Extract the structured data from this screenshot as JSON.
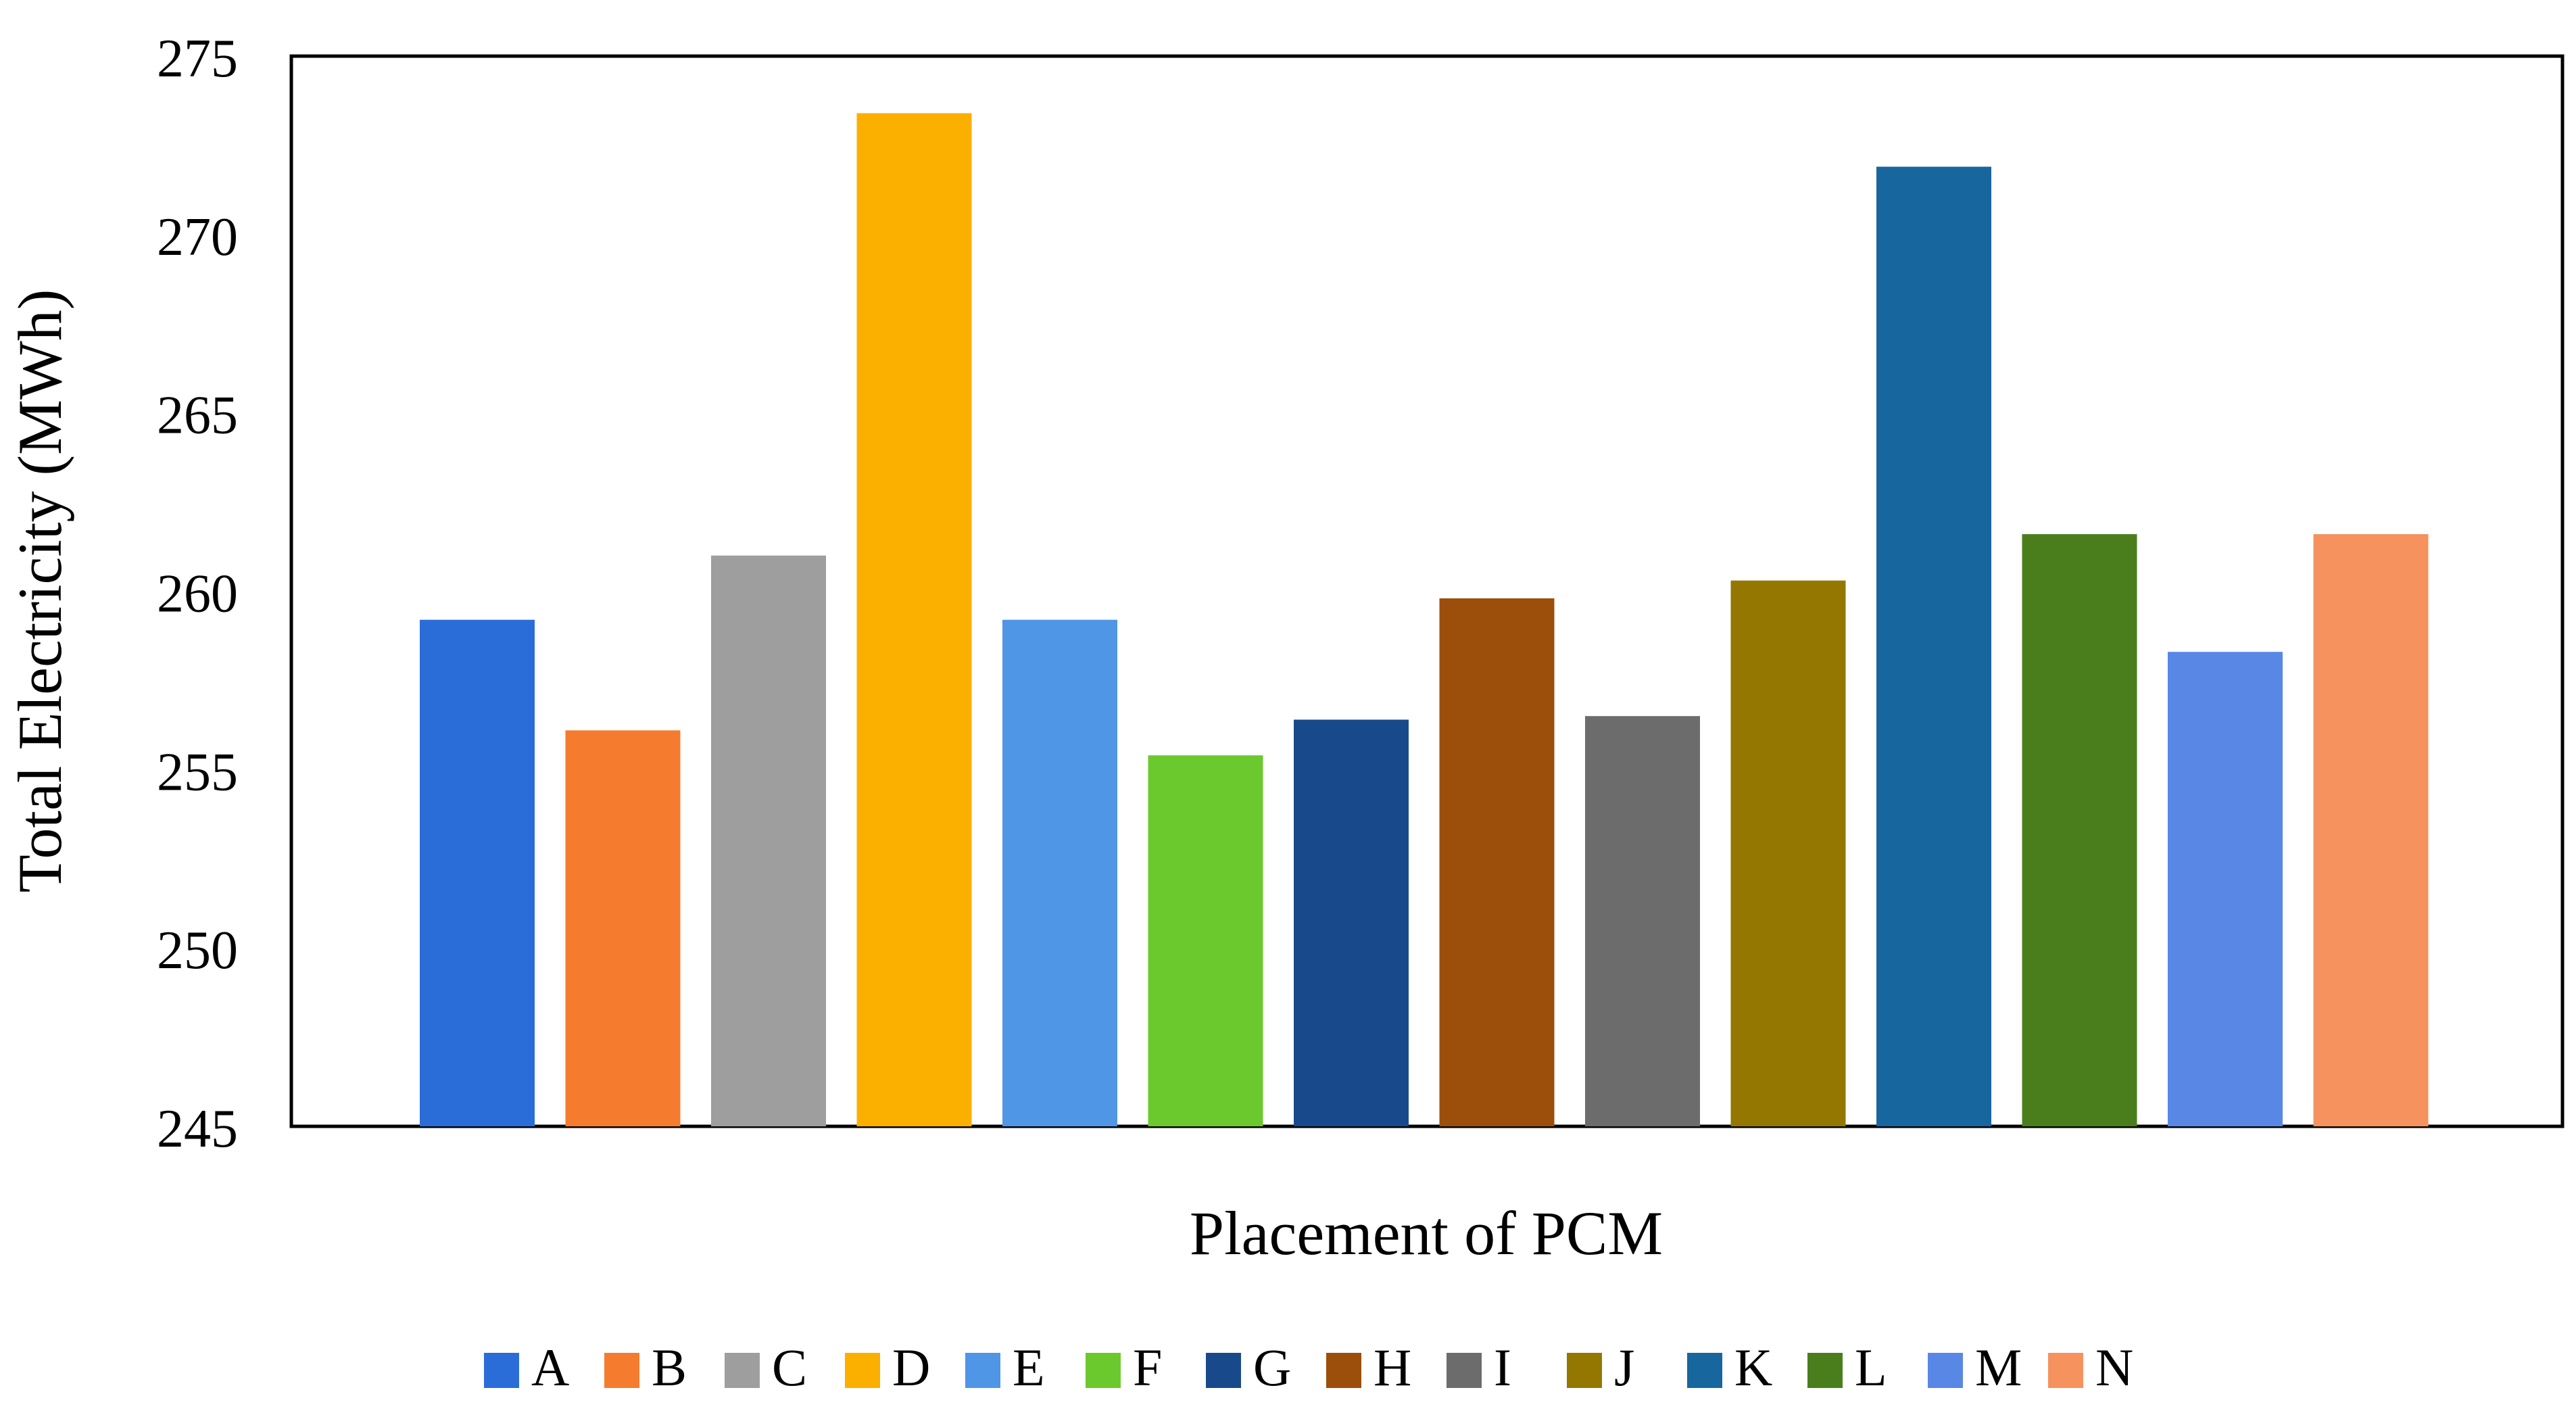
{
  "chart_data": {
    "type": "bar",
    "title": "",
    "xlabel": "Placement of PCM",
    "ylabel": "Total Electricity (MWh)",
    "ylim": [
      245,
      275
    ],
    "yticks": [
      245,
      250,
      255,
      260,
      265,
      270,
      275
    ],
    "grid": false,
    "legend_position": "bottom",
    "series": [
      {
        "name": "A",
        "value": 259.2,
        "color": "#2A6DD9"
      },
      {
        "name": "B",
        "value": 256.1,
        "color": "#F57C2F"
      },
      {
        "name": "C",
        "value": 261.0,
        "color": "#9E9E9E"
      },
      {
        "name": "D",
        "value": 273.4,
        "color": "#FBB000"
      },
      {
        "name": "E",
        "value": 259.2,
        "color": "#4F96E6"
      },
      {
        "name": "F",
        "value": 255.4,
        "color": "#6CC92D"
      },
      {
        "name": "G",
        "value": 256.4,
        "color": "#184A8B"
      },
      {
        "name": "H",
        "value": 259.8,
        "color": "#9C4E0B"
      },
      {
        "name": "I",
        "value": 256.5,
        "color": "#6C6C6C"
      },
      {
        "name": "J",
        "value": 260.3,
        "color": "#947700"
      },
      {
        "name": "K",
        "value": 271.9,
        "color": "#17669E"
      },
      {
        "name": "L",
        "value": 261.6,
        "color": "#4A7E1C"
      },
      {
        "name": "M",
        "value": 258.3,
        "color": "#5887E6"
      },
      {
        "name": "N",
        "value": 261.6,
        "color": "#F6925E"
      }
    ]
  }
}
